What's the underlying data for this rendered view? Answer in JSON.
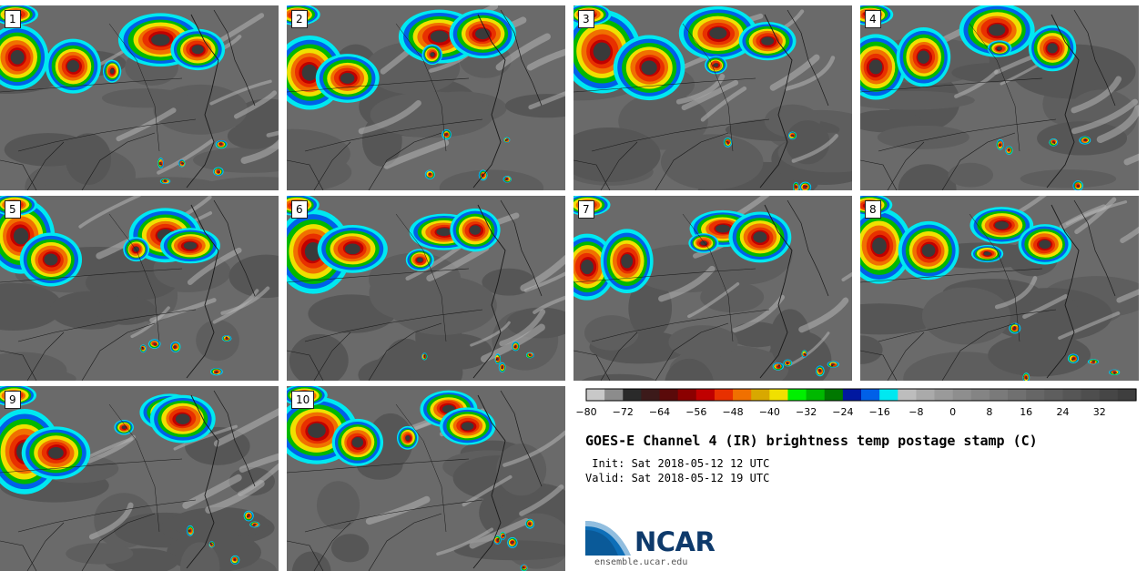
{
  "panels": [
    {
      "label": "1"
    },
    {
      "label": "2"
    },
    {
      "label": "3"
    },
    {
      "label": "4"
    },
    {
      "label": "5"
    },
    {
      "label": "6"
    },
    {
      "label": "7"
    },
    {
      "label": "8"
    },
    {
      "label": "9"
    },
    {
      "label": "10"
    }
  ],
  "colorbar": {
    "min": -80,
    "max": 40,
    "step": 4,
    "ticks": [
      "−80",
      "−72",
      "−64",
      "−56",
      "−48",
      "−40",
      "−32",
      "−24",
      "−16",
      "−8",
      "0",
      "8",
      "16",
      "24",
      "32"
    ],
    "tick_values": [
      -80,
      -72,
      -64,
      -56,
      -48,
      -40,
      -32,
      -24,
      -16,
      -8,
      0,
      8,
      16,
      24,
      32
    ],
    "colors": [
      "#c8c8c8",
      "#8c8c8c",
      "#2a2a2a",
      "#3c1a1a",
      "#5a0a0a",
      "#8b0000",
      "#c00000",
      "#e83000",
      "#f07000",
      "#d8a800",
      "#f0e000",
      "#00f000",
      "#00b800",
      "#007800",
      "#0018a0",
      "#0060e8",
      "#00e8f0",
      "#bdbdbd",
      "#aaaaaa",
      "#9a9a9a",
      "#8e8e8e",
      "#848484",
      "#7a7a7a",
      "#707070",
      "#666666",
      "#5e5e5e",
      "#565656",
      "#4e4e4e",
      "#464646",
      "#3e3e3e"
    ]
  },
  "title": "GOES-E Channel 4 (IR) brightness temp postage stamp (C)",
  "init_line": " Init: Sat 2018-05-12 12 UTC",
  "valid_line": "Valid: Sat 2018-05-12 19 UTC",
  "logo": {
    "text": "NCAR",
    "url": "ensemble.ucar.edu"
  }
}
